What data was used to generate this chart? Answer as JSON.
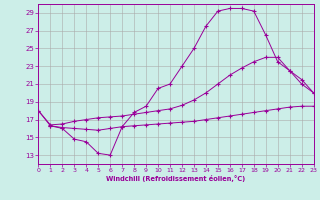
{
  "xlabel": "Windchill (Refroidissement éolien,°C)",
  "bg_color": "#cceee8",
  "grid_color": "#aaaaaa",
  "line_color": "#990099",
  "xlim": [
    0,
    23
  ],
  "ylim": [
    12,
    30
  ],
  "yticks": [
    13,
    15,
    17,
    19,
    21,
    23,
    25,
    27,
    29
  ],
  "xticks": [
    0,
    1,
    2,
    3,
    4,
    5,
    6,
    7,
    8,
    9,
    10,
    11,
    12,
    13,
    14,
    15,
    16,
    17,
    18,
    19,
    20,
    21,
    22,
    23
  ],
  "curve1_x": [
    0,
    1,
    2,
    3,
    4,
    5,
    6,
    7,
    8,
    9,
    10,
    11,
    12,
    13,
    14,
    15,
    16,
    17,
    18,
    19,
    20,
    21,
    22,
    23
  ],
  "curve1_y": [
    18.0,
    16.3,
    16.0,
    14.8,
    14.5,
    13.2,
    13.0,
    16.2,
    17.8,
    18.5,
    20.5,
    21.0,
    23.0,
    25.0,
    27.5,
    29.2,
    29.5,
    29.5,
    29.2,
    26.5,
    23.5,
    22.5,
    21.0,
    20.0
  ],
  "curve2_x": [
    0,
    1,
    2,
    3,
    4,
    5,
    6,
    7,
    8,
    9,
    10,
    11,
    12,
    13,
    14,
    15,
    16,
    17,
    18,
    19,
    20,
    21,
    22,
    23
  ],
  "curve2_y": [
    18.0,
    16.4,
    16.5,
    16.8,
    17.0,
    17.2,
    17.3,
    17.4,
    17.6,
    17.8,
    18.0,
    18.2,
    18.6,
    19.2,
    20.0,
    21.0,
    22.0,
    22.8,
    23.5,
    24.0,
    24.0,
    22.5,
    21.5,
    20.0
  ],
  "curve3_x": [
    1,
    2,
    3,
    4,
    5,
    6,
    7,
    8,
    9,
    10,
    11,
    12,
    13,
    14,
    15,
    16,
    17,
    18,
    19,
    20,
    21,
    22,
    23
  ],
  "curve3_y": [
    16.3,
    16.1,
    16.0,
    15.9,
    15.8,
    16.0,
    16.2,
    16.3,
    16.4,
    16.5,
    16.6,
    16.7,
    16.8,
    17.0,
    17.2,
    17.4,
    17.6,
    17.8,
    18.0,
    18.2,
    18.4,
    18.5,
    18.5
  ]
}
